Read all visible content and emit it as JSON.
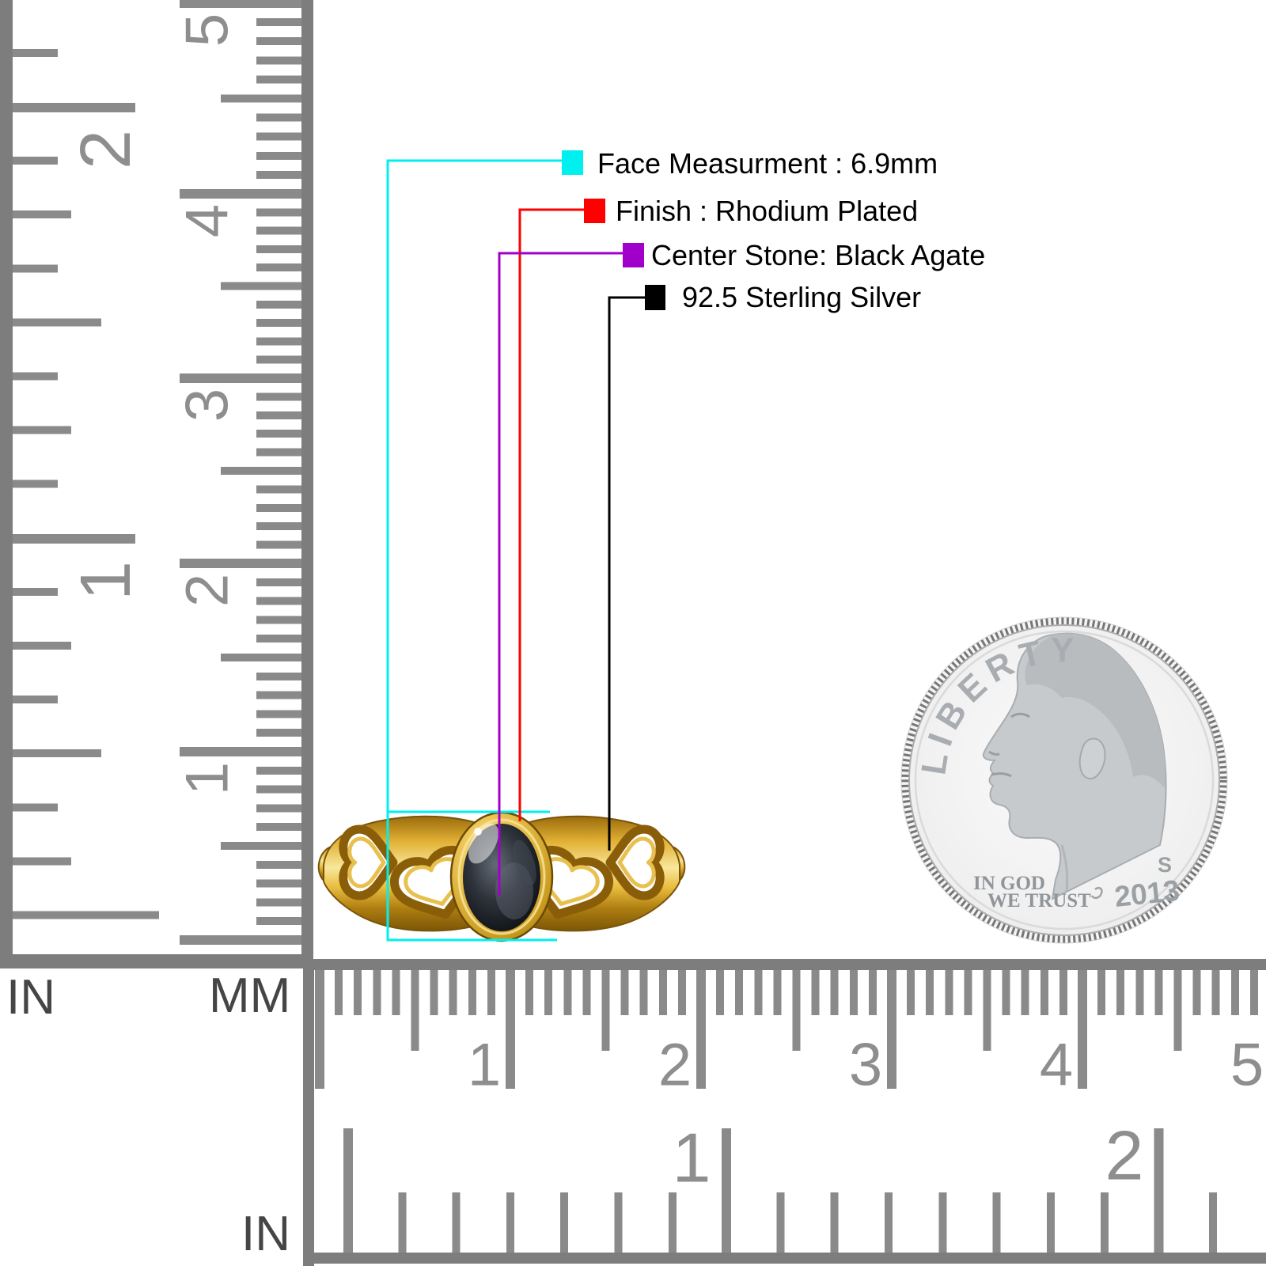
{
  "product": {
    "annotations": [
      {
        "label": "Face Measurment : 6.9mm",
        "color": "#00EFEF"
      },
      {
        "label": "Finish : Rhodium Plated",
        "color": "#FF0000"
      },
      {
        "label": "Center Stone: Black Agate",
        "color": "#A100CB"
      },
      {
        "label": "92.5 Sterling Silver",
        "color": "#000000"
      }
    ],
    "ring": {
      "metal_color": "#C9992B",
      "stone_color": "#20242B"
    }
  },
  "rulers": {
    "left": {
      "inch_label": "IN",
      "mm_label": "MM",
      "cm_numbers": [
        "5",
        "4",
        "3",
        "2",
        "1"
      ],
      "inch_numbers": [
        "2",
        "1"
      ]
    },
    "bottom": {
      "inch_label": "IN",
      "cm_numbers": [
        "1",
        "2",
        "3",
        "4",
        "5"
      ],
      "inch_numbers": [
        "1",
        "2"
      ]
    }
  },
  "coin": {
    "legend": "LIBERTY",
    "motto": [
      "IN GOD",
      "WE TRUST"
    ],
    "mint_mark": "S",
    "year": "2013"
  },
  "colors": {
    "ruler_tick": "#8A8A8A",
    "ruler_edge": "#7D7D7D",
    "ruler_number": "#8E8E8E"
  }
}
